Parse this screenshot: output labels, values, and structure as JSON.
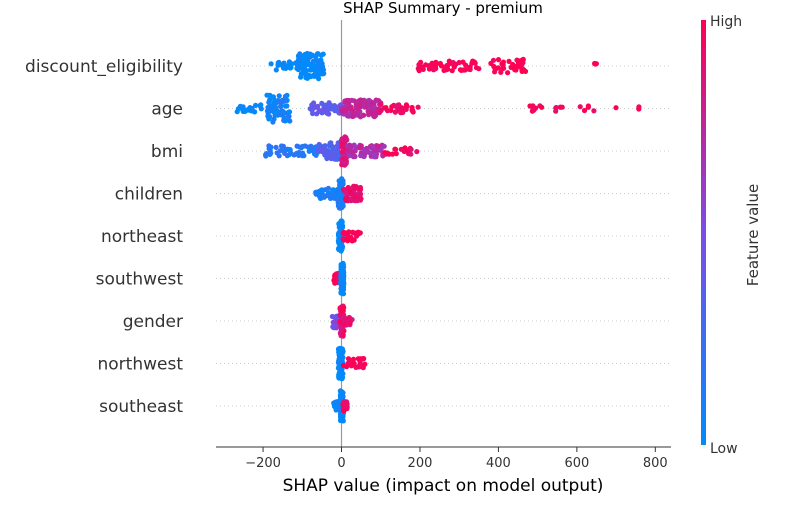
{
  "chart_data": {
    "type": "scatter",
    "title": "SHAP Summary - premium",
    "xlabel": "SHAP value (impact on model output)",
    "xlim": [
      -320,
      840
    ],
    "xticks": [
      {
        "value": -200,
        "label": "−200"
      },
      {
        "value": 0,
        "label": "0"
      },
      {
        "value": 200,
        "label": "200"
      },
      {
        "value": 400,
        "label": "400"
      },
      {
        "value": 600,
        "label": "600"
      },
      {
        "value": 800,
        "label": "800"
      }
    ],
    "colorbar": {
      "title": "Feature value",
      "high_label": "High",
      "low_label": "Low",
      "low_color": "#008bfb",
      "high_color": "#ff0052"
    },
    "features": [
      {
        "name": "discount_eligibility",
        "clusters": [
          {
            "x": [
              -180,
              -100
            ],
            "v": 0.0,
            "n": 30,
            "spread": 0.3
          },
          {
            "x": [
              -110,
              -45
            ],
            "v": 0.0,
            "n": 110,
            "spread": 0.75
          },
          {
            "x": [
              195,
              290
            ],
            "v": 1.0,
            "n": 35,
            "spread": 0.3
          },
          {
            "x": [
              290,
              350
            ],
            "v": 1.0,
            "n": 18,
            "spread": 0.3
          },
          {
            "x": [
              380,
              470
            ],
            "v": 1.0,
            "n": 40,
            "spread": 0.4
          },
          {
            "x": [
              645,
              655
            ],
            "v": 1.0,
            "n": 3,
            "spread": 0.15
          }
        ]
      },
      {
        "name": "age",
        "clusters": [
          {
            "x": [
              -270,
              -200
            ],
            "v": 0.05,
            "n": 20,
            "spread": 0.25
          },
          {
            "x": [
              -190,
              -130
            ],
            "v": 0.08,
            "n": 60,
            "spread": 0.8
          },
          {
            "x": [
              -80,
              0
            ],
            "v": 0.4,
            "n": 50,
            "spread": 0.35
          },
          {
            "x": [
              0,
              100
            ],
            "v": 0.75,
            "n": 110,
            "spread": 0.5
          },
          {
            "x": [
              100,
              200
            ],
            "v": 0.95,
            "n": 30,
            "spread": 0.25
          },
          {
            "x": [
              475,
              570
            ],
            "v": 1.0,
            "n": 14,
            "spread": 0.2
          },
          {
            "x": [
              600,
              650
            ],
            "v": 1.0,
            "n": 5,
            "spread": 0.15
          },
          {
            "x": [
              685,
              790
            ],
            "v": 1.0,
            "n": 3,
            "spread": 0.1
          }
        ]
      },
      {
        "name": "bmi",
        "clusters": [
          {
            "x": [
              -200,
              -60
            ],
            "v": 0.15,
            "n": 55,
            "spread": 0.3
          },
          {
            "x": [
              -60,
              0
            ],
            "v": 0.35,
            "n": 60,
            "spread": 0.5
          },
          {
            "x": [
              0,
              15
            ],
            "v": 0.85,
            "n": 60,
            "spread": 0.85
          },
          {
            "x": [
              15,
              110
            ],
            "v": 0.7,
            "n": 60,
            "spread": 0.35
          },
          {
            "x": [
              110,
              195
            ],
            "v": 0.95,
            "n": 20,
            "spread": 0.2
          }
        ]
      },
      {
        "name": "children",
        "clusters": [
          {
            "x": [
              -70,
              -10
            ],
            "v": 0.1,
            "n": 40,
            "spread": 0.3
          },
          {
            "x": [
              -10,
              5
            ],
            "v": 0.1,
            "n": 60,
            "spread": 0.9
          },
          {
            "x": [
              5,
              50
            ],
            "v": 0.9,
            "n": 55,
            "spread": 0.45
          }
        ]
      },
      {
        "name": "northeast",
        "clusters": [
          {
            "x": [
              -8,
              3
            ],
            "v": 0.0,
            "n": 80,
            "spread": 0.9
          },
          {
            "x": [
              3,
              48
            ],
            "v": 1.0,
            "n": 28,
            "spread": 0.3
          }
        ]
      },
      {
        "name": "southwest",
        "clusters": [
          {
            "x": [
              -20,
              -2
            ],
            "v": 1.0,
            "n": 22,
            "spread": 0.3
          },
          {
            "x": [
              -2,
              6
            ],
            "v": 0.0,
            "n": 80,
            "spread": 0.9
          }
        ]
      },
      {
        "name": "gender",
        "clusters": [
          {
            "x": [
              -25,
              -2
            ],
            "v": 0.5,
            "n": 30,
            "spread": 0.4
          },
          {
            "x": [
              -4,
              6
            ],
            "v": 0.9,
            "n": 70,
            "spread": 0.9
          },
          {
            "x": [
              6,
              28
            ],
            "v": 0.9,
            "n": 15,
            "spread": 0.3
          }
        ]
      },
      {
        "name": "northwest",
        "clusters": [
          {
            "x": [
              -8,
              4
            ],
            "v": 0.0,
            "n": 80,
            "spread": 0.9
          },
          {
            "x": [
              4,
              60
            ],
            "v": 1.0,
            "n": 25,
            "spread": 0.3
          }
        ]
      },
      {
        "name": "southeast",
        "clusters": [
          {
            "x": [
              -20,
              -3
            ],
            "v": 0.0,
            "n": 25,
            "spread": 0.3
          },
          {
            "x": [
              -3,
              5
            ],
            "v": 0.05,
            "n": 80,
            "spread": 0.9
          },
          {
            "x": [
              3,
              15
            ],
            "v": 0.95,
            "n": 20,
            "spread": 0.3
          }
        ]
      }
    ]
  }
}
